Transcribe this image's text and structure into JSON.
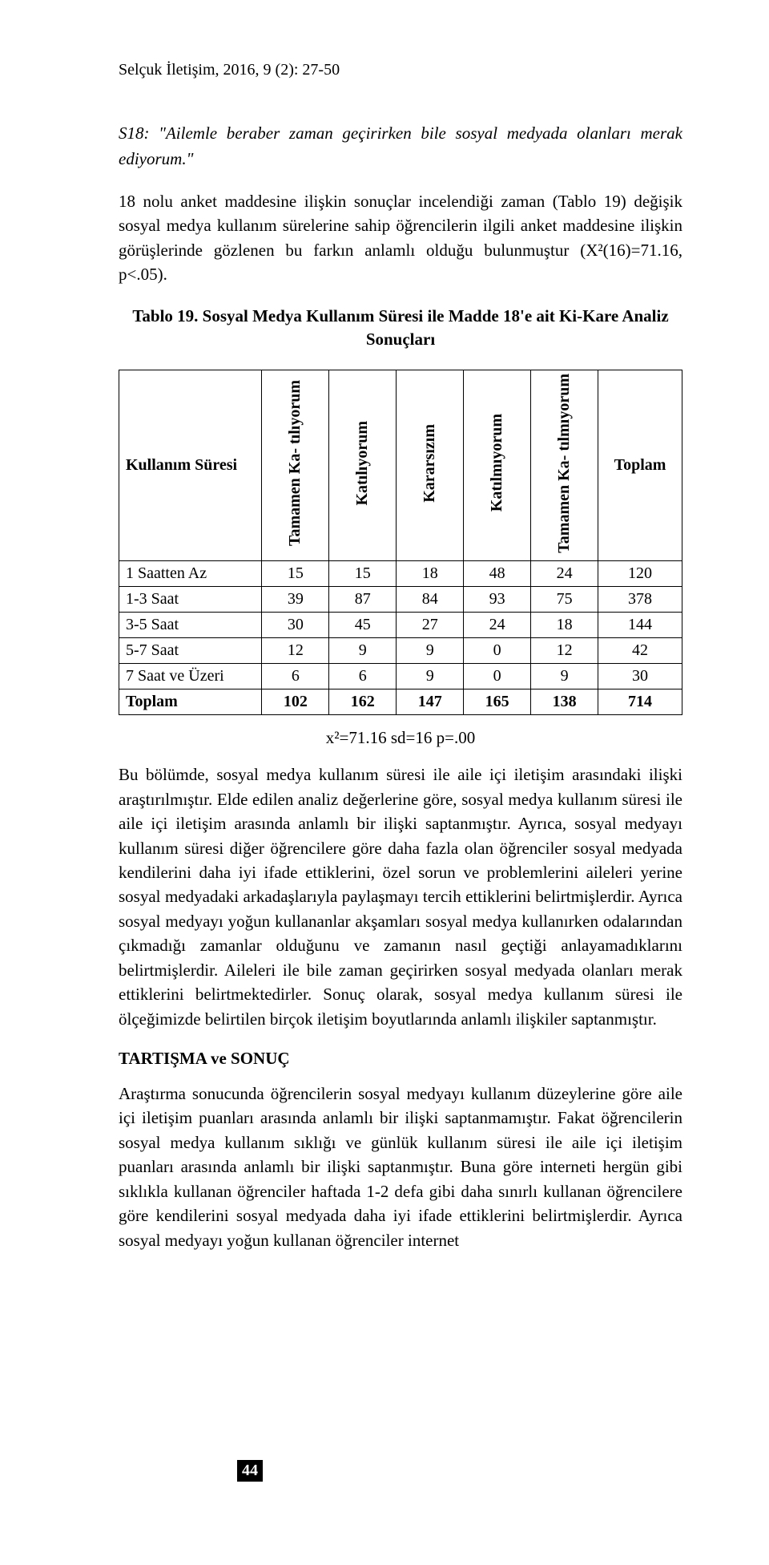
{
  "header": "Selçuk İletişim, 2016, 9 (2): 27-50",
  "s18": "S18: \"Ailemle beraber zaman geçirirken bile sosyal medyada olanları merak ediyorum.\"",
  "para1": "18 nolu anket maddesine ilişkin sonuçlar incelendiği zaman (Tablo 19) değişik sosyal medya kullanım sürelerine sahip öğrencilerin ilgili anket maddesine ilişkin görüşlerinde gözlenen bu farkın anlamlı olduğu bulunmuştur (X²(16)=71.16, p<.05).",
  "table_title": "Tablo 19. Sosyal Medya Kullanım Süresi ile Madde 18'e ait Ki-Kare Analiz Sonuçları",
  "table": {
    "row_header_label": "Kullanım Süresi",
    "columns": [
      "Tamamen Ka-\ntılıyorum",
      "Katılıyorum",
      "Kararsızım",
      "Katılmıyorum",
      "Tamamen Ka-\ntılmıyorum",
      "Toplam"
    ],
    "rows": [
      {
        "label": "1 Saatten Az",
        "values": [
          15,
          15,
          18,
          48,
          24,
          120
        ]
      },
      {
        "label": "1-3 Saat",
        "values": [
          39,
          87,
          84,
          93,
          75,
          378
        ]
      },
      {
        "label": "3-5 Saat",
        "values": [
          30,
          45,
          27,
          24,
          18,
          144
        ]
      },
      {
        "label": "5-7 Saat",
        "values": [
          12,
          9,
          9,
          0,
          12,
          42
        ]
      },
      {
        "label": "7 Saat ve Üzeri",
        "values": [
          6,
          6,
          9,
          0,
          9,
          30
        ]
      }
    ],
    "total_row": {
      "label": "Toplam",
      "values": [
        102,
        162,
        147,
        165,
        138,
        714
      ]
    },
    "border_color": "#000000",
    "cell_bg": "#ffffff",
    "font_size": 20
  },
  "stats_line": "x²=71.16   sd=16   p=.00",
  "para2": "Bu bölümde, sosyal medya kullanım süresi ile aile içi iletişim arasındaki ilişki araştırılmıştır. Elde edilen analiz değerlerine göre, sosyal medya kullanım süresi ile aile içi iletişim arasında anlamlı bir ilişki saptanmıştır. Ayrıca, sosyal medyayı kullanım süresi diğer öğrencilere göre daha fazla olan öğrenciler sosyal medyada kendilerini daha iyi ifade ettiklerini, özel sorun ve problemlerini aileleri yerine sosyal medyadaki arkadaşlarıyla paylaşmayı tercih ettiklerini belirtmişlerdir. Ayrıca sosyal medyayı yoğun kullananlar akşamları sosyal medya kullanırken odalarından çıkmadığı zamanlar olduğunu ve zamanın nasıl geçtiği anlayamadıklarını belirtmişlerdir. Aileleri ile bile zaman geçirirken sosyal medyada olanları merak ettiklerini belirtmektedirler. Sonuç olarak, sosyal medya kullanım süresi ile ölçeğimizde belirtilen birçok iletişim boyutlarında anlamlı ilişkiler saptanmıştır.",
  "section_heading": "TARTIŞMA ve SONUÇ",
  "para3": "Araştırma sonucunda öğrencilerin sosyal medyayı kullanım düzeylerine göre aile içi iletişim puanları arasında anlamlı bir ilişki saptanmamıştır. Fakat öğrencilerin sosyal medya kullanım sıklığı ve günlük kullanım süresi ile aile içi iletişim puanları arasında anlamlı bir ilişki saptanmıştır. Buna göre interneti hergün gibi sıklıkla kullanan öğrenciler haftada 1-2 defa gibi daha sınırlı kullanan öğrencilere göre kendilerini sosyal medyada daha iyi ifade ettiklerini belirtmişlerdir. Ayrıca sosyal medyayı yoğun kullanan öğrenciler internet",
  "page_number": "44"
}
